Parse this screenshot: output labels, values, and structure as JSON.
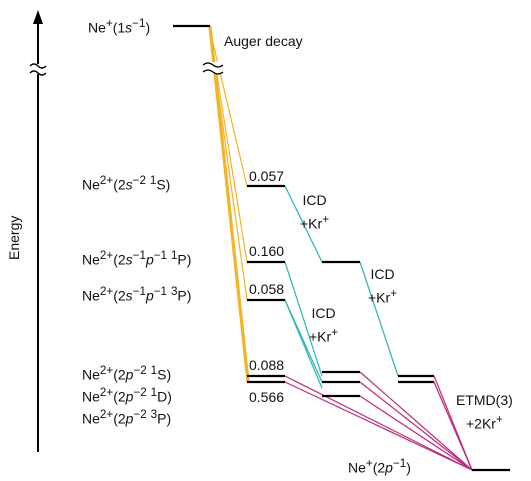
{
  "axis": {
    "label": "Energy"
  },
  "initial_state": {
    "label_html": "Ne<sup>+</sup>(1<i>s</i><sup>−1</sup>)"
  },
  "auger": {
    "label": "Auger decay"
  },
  "states": [
    {
      "id": "2s-2-1S",
      "label_html": "Ne<sup>2+</sup>(2<i>s</i><sup>−2</sup> <sup>1</sup>S)",
      "branching_ratio": "0.057"
    },
    {
      "id": "2s-1p-1-1P",
      "label_html": "Ne<sup>2+</sup>(2<i>s</i><sup>−1</sup><i>p</i><sup>−1</sup> <sup>1</sup>P)",
      "branching_ratio": "0.160"
    },
    {
      "id": "2s-1p-1-3P",
      "label_html": "Ne<sup>2+</sup>(2<i>s</i><sup>−1</sup><i>p</i><sup>−1</sup> <sup>3</sup>P)",
      "branching_ratio": "0.058"
    },
    {
      "id": "2p-2-1S",
      "label_html": "Ne<sup>2+</sup>(2<i>p</i><sup>−2</sup> <sup>1</sup>S)",
      "branching_ratio": "0.088"
    },
    {
      "id": "2p-2-1D",
      "label_html": "Ne<sup>2+</sup>(2<i>p</i><sup>−2</sup> <sup>1</sup>D)",
      "branching_ratio": ""
    },
    {
      "id": "2p-2-3P",
      "label_html": "Ne<sup>2+</sup>(2<i>p</i><sup>−2</sup> <sup>3</sup>P)",
      "branching_ratio": "0.566"
    }
  ],
  "icd_labels": [
    {
      "id": "icd-1",
      "line1": "ICD",
      "line2_html": "+Kr<sup>+</sup>"
    },
    {
      "id": "icd-2",
      "line1": "ICD",
      "line2_html": "+Kr<sup>+</sup>"
    },
    {
      "id": "icd-3",
      "line1": "ICD",
      "line2_html": "+Kr<sup>+</sup>"
    }
  ],
  "etmd": {
    "line1": "ETMD(3)",
    "line2_html": "+2Kr<sup>+</sup>"
  },
  "final_state": {
    "label_html": "Ne<sup>+</sup>(2<i>p</i><sup>−1</sup>)"
  },
  "colors": {
    "auger": "#f5b324",
    "icd": "#2ab3b5",
    "etmd": "#c0267a",
    "level": "#000000"
  }
}
